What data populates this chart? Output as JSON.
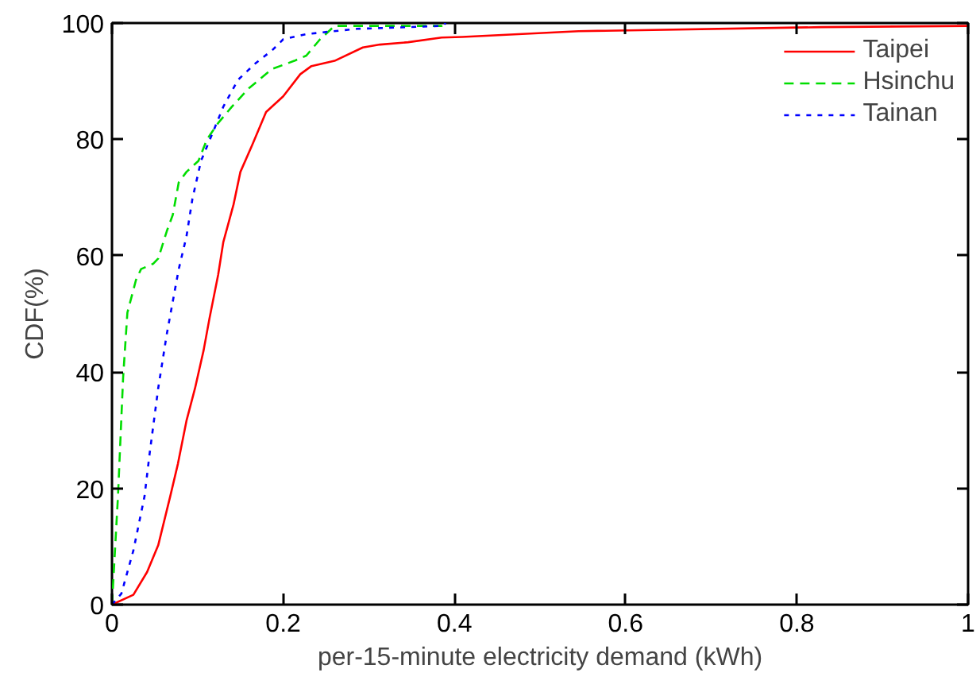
{
  "chart_data": {
    "type": "line",
    "xlabel": "per-15-minute electricity demand (kWh)",
    "ylabel": "CDF(%)",
    "xlim": [
      0,
      1
    ],
    "ylim": [
      0,
      100
    ],
    "xticks": [
      0,
      0.2,
      0.4,
      0.6,
      0.8,
      1
    ],
    "yticks": [
      0,
      20,
      40,
      60,
      80,
      100
    ],
    "grid": false,
    "legend": "top right",
    "marker": "none",
    "series": [
      {
        "name": "Taipei",
        "color": "#ff0000",
        "line_style": "solid",
        "x": [
          0,
          0.025,
          0.041,
          0.054,
          0.068,
          0.077,
          0.087,
          0.097,
          0.107,
          0.114,
          0.124,
          0.13,
          0.142,
          0.15,
          0.164,
          0.18,
          0.2,
          0.22,
          0.233,
          0.26,
          0.293,
          0.313,
          0.346,
          0.385,
          0.409,
          0.545,
          0.829,
          1
        ],
        "values": [
          0,
          1.7,
          5.6,
          10.2,
          18.6,
          24.2,
          31.6,
          37.2,
          43.7,
          49.3,
          56.7,
          62.3,
          68.8,
          74.4,
          79.1,
          84.7,
          87.4,
          91.2,
          92.6,
          93.5,
          95.8,
          96.3,
          96.7,
          97.5,
          97.6,
          98.6,
          99.3,
          99.5
        ]
      },
      {
        "name": "Hsinchu",
        "color": "#00dd00",
        "line_style": "dashed",
        "x": [
          0,
          0.007,
          0.013,
          0.018,
          0.028,
          0.034,
          0.048,
          0.054,
          0.064,
          0.071,
          0.078,
          0.087,
          0.101,
          0.111,
          0.124,
          0.14,
          0.16,
          0.187,
          0.213,
          0.227,
          0.243,
          0.26,
          0.385,
          0.39
        ],
        "values": [
          0,
          18.6,
          39,
          50.2,
          55.8,
          57.7,
          58.6,
          59.5,
          64.2,
          67,
          72.6,
          74.4,
          76.3,
          80,
          82.8,
          85.6,
          88.8,
          92.1,
          93.5,
          94.4,
          97.2,
          99.5,
          99.5,
          100
        ]
      },
      {
        "name": "Tainan",
        "color": "#0000ff",
        "line_style": "dotted",
        "x": [
          0,
          0.011,
          0.025,
          0.038,
          0.044,
          0.054,
          0.064,
          0.078,
          0.087,
          0.094,
          0.104,
          0.117,
          0.13,
          0.147,
          0.167,
          0.187,
          0.2,
          0.227,
          0.286,
          0.385,
          0.39
        ],
        "values": [
          0,
          1.9,
          9.3,
          18.6,
          26,
          37.2,
          46.5,
          57.7,
          63.3,
          69.8,
          76.3,
          80.9,
          85.6,
          90.2,
          93,
          95.3,
          97.2,
          98.1,
          99,
          99.5,
          100
        ]
      }
    ]
  }
}
